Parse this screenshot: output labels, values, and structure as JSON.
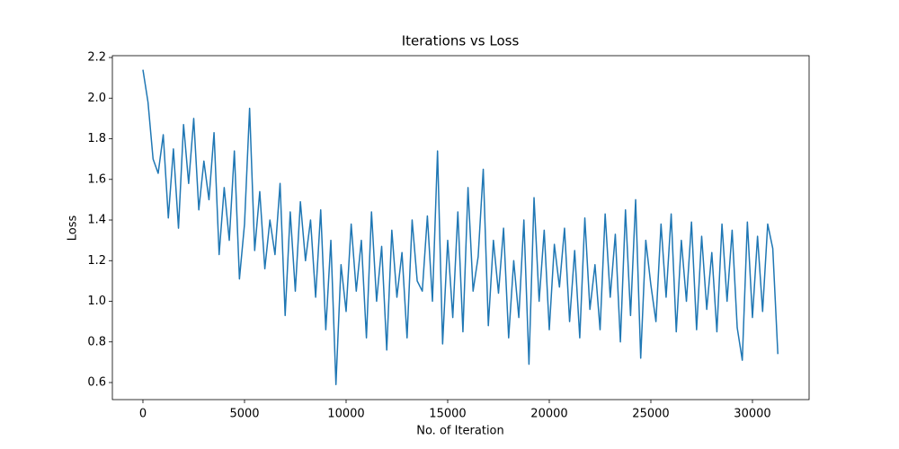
{
  "chart_data": {
    "type": "line",
    "title": "Iterations vs Loss",
    "xlabel": "No. of Iteration",
    "ylabel": "Loss",
    "color": "#1f77b4",
    "x": [
      0,
      250,
      500,
      750,
      1000,
      1250,
      1500,
      1750,
      2000,
      2250,
      2500,
      2750,
      3000,
      3250,
      3500,
      3750,
      4000,
      4250,
      4500,
      4750,
      5000,
      5250,
      5500,
      5750,
      6000,
      6250,
      6500,
      6750,
      7000,
      7250,
      7500,
      7750,
      8000,
      8250,
      8500,
      8750,
      9000,
      9250,
      9500,
      9750,
      10000,
      10250,
      10500,
      10750,
      11000,
      11250,
      11500,
      11750,
      12000,
      12250,
      12500,
      12750,
      13000,
      13250,
      13500,
      13750,
      14000,
      14250,
      14500,
      14750,
      15000,
      15250,
      15500,
      15750,
      16000,
      16250,
      16500,
      16750,
      17000,
      17250,
      17500,
      17750,
      18000,
      18250,
      18500,
      18750,
      19000,
      19250,
      19500,
      19750,
      20000,
      20250,
      20500,
      20750,
      21000,
      21250,
      21500,
      21750,
      22000,
      22250,
      22500,
      22750,
      23000,
      23250,
      23500,
      23750,
      24000,
      24250,
      24500,
      24750,
      25000,
      25250,
      25500,
      25750,
      26000,
      26250,
      26500,
      26750,
      27000,
      27250,
      27500,
      27750,
      28000,
      28250,
      28500,
      28750,
      29000,
      29250,
      29500,
      29750,
      30000,
      30250,
      30500,
      30750,
      31000,
      31250
    ],
    "values": [
      2.14,
      1.98,
      1.7,
      1.63,
      1.82,
      1.41,
      1.75,
      1.36,
      1.87,
      1.58,
      1.9,
      1.45,
      1.69,
      1.5,
      1.83,
      1.23,
      1.56,
      1.3,
      1.74,
      1.11,
      1.38,
      1.95,
      1.25,
      1.54,
      1.16,
      1.4,
      1.23,
      1.58,
      0.93,
      1.44,
      1.05,
      1.49,
      1.2,
      1.4,
      1.02,
      1.45,
      0.86,
      1.3,
      0.59,
      1.18,
      0.95,
      1.38,
      1.05,
      1.3,
      0.82,
      1.44,
      1.0,
      1.27,
      0.76,
      1.35,
      1.02,
      1.24,
      0.82,
      1.4,
      1.1,
      1.05,
      1.42,
      1.0,
      1.74,
      0.79,
      1.3,
      0.92,
      1.44,
      0.85,
      1.56,
      1.05,
      1.22,
      1.65,
      0.88,
      1.3,
      1.04,
      1.36,
      0.82,
      1.2,
      0.92,
      1.4,
      0.69,
      1.51,
      1.0,
      1.35,
      0.86,
      1.28,
      1.07,
      1.36,
      0.9,
      1.25,
      0.82,
      1.41,
      0.96,
      1.18,
      0.86,
      1.43,
      1.02,
      1.33,
      0.8,
      1.45,
      0.93,
      1.5,
      0.72,
      1.3,
      1.08,
      0.9,
      1.38,
      1.02,
      1.43,
      0.85,
      1.3,
      1.0,
      1.39,
      0.86,
      1.32,
      0.96,
      1.24,
      0.85,
      1.38,
      1.0,
      1.35,
      0.87,
      0.71,
      1.39,
      0.92,
      1.32,
      0.95,
      1.38,
      1.26,
      0.74
    ],
    "xlim": [
      -1504,
      32788
    ],
    "ylim": [
      0.516,
      2.209
    ],
    "xticks": [
      0,
      5000,
      10000,
      15000,
      20000,
      25000,
      30000
    ],
    "yticks": [
      0.6,
      0.8,
      {
        "value": 1.0,
        "label": "1.0"
      },
      1.2,
      1.4,
      1.6,
      1.8,
      {
        "value": 2.0,
        "label": "2.0"
      },
      2.2
    ]
  }
}
